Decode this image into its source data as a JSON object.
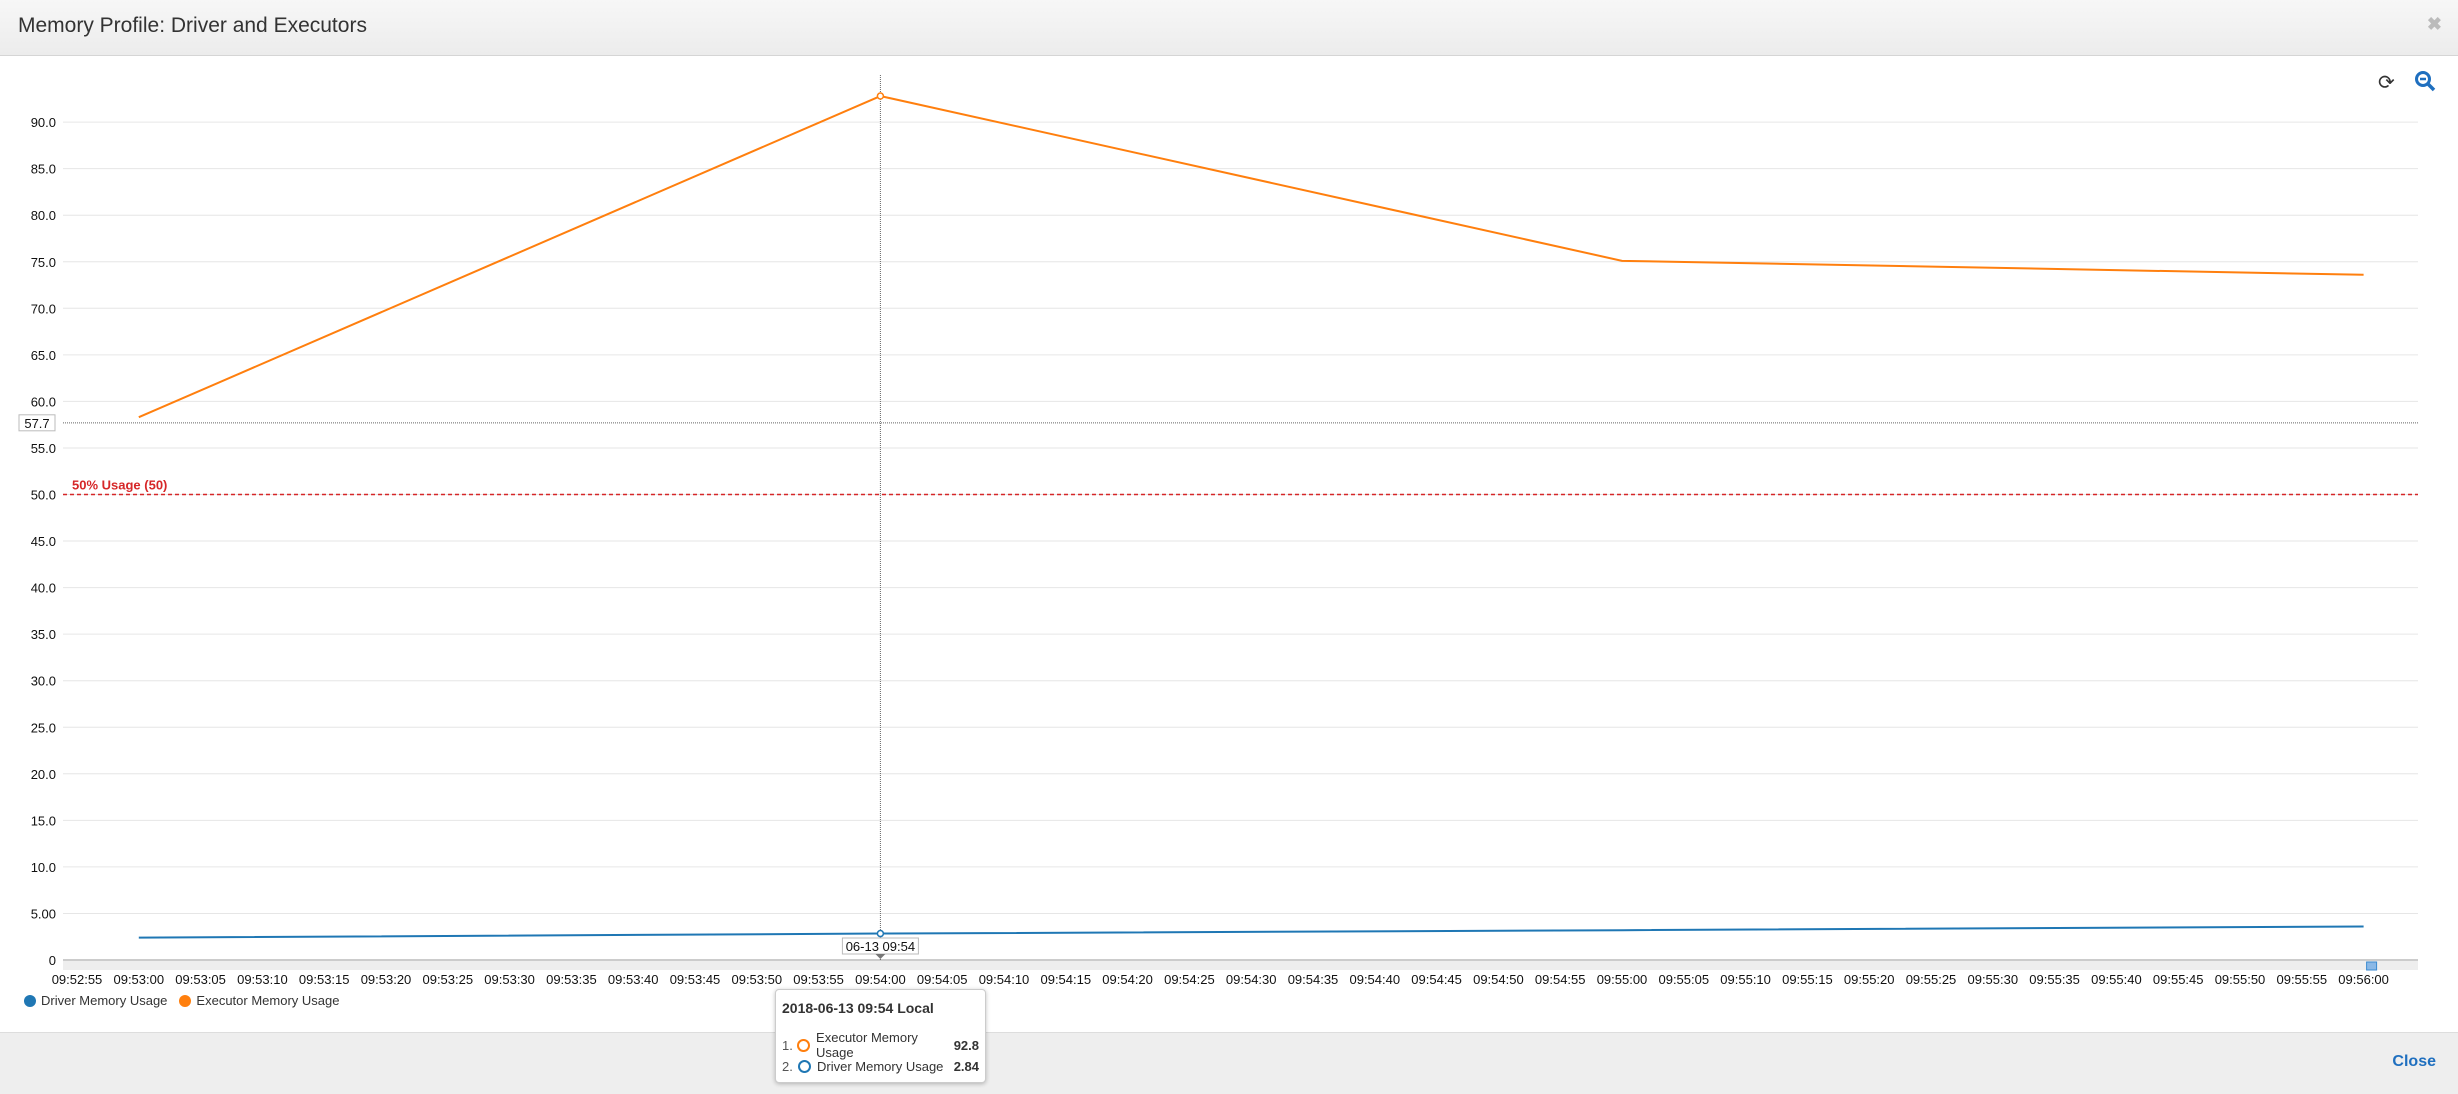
{
  "header": {
    "title": "Memory Profile: Driver and Executors",
    "close_icon": "times-icon"
  },
  "toolbar": {
    "refresh_icon": "refresh-icon",
    "zoom_out_icon": "zoom-out-icon"
  },
  "footer": {
    "close_label": "Close"
  },
  "chart_data": {
    "type": "line",
    "title": "",
    "xlabel": "",
    "ylabel": "",
    "ylim": [
      0,
      95
    ],
    "grid": true,
    "y_ticks": [
      "0",
      "5.00",
      "10.0",
      "15.0",
      "20.0",
      "25.0",
      "30.0",
      "35.0",
      "40.0",
      "45.0",
      "50.0",
      "55.0",
      "60.0",
      "65.0",
      "70.0",
      "75.0",
      "80.0",
      "85.0",
      "90.0"
    ],
    "x_ticks": [
      "09:52:55",
      "09:53:00",
      "09:53:05",
      "09:53:10",
      "09:53:15",
      "09:53:20",
      "09:53:25",
      "09:53:30",
      "09:53:35",
      "09:53:40",
      "09:53:45",
      "09:53:50",
      "09:53:55",
      "09:54:00",
      "09:54:05",
      "09:54:10",
      "09:54:15",
      "09:54:20",
      "09:54:25",
      "09:54:30",
      "09:54:35",
      "09:54:40",
      "09:54:45",
      "09:54:50",
      "09:54:55",
      "09:55:00",
      "09:55:05",
      "09:55:10",
      "09:55:15",
      "09:55:20",
      "09:55:25",
      "09:55:30",
      "09:55:35",
      "09:55:40",
      "09:55:45",
      "09:55:50",
      "09:55:55",
      "09:56:00"
    ],
    "x": [
      "09:53:00",
      "09:54:00",
      "09:55:00",
      "09:56:00"
    ],
    "series": [
      {
        "name": "Driver Memory Usage",
        "color": "#1f77b4",
        "values": [
          2.4,
          2.84,
          3.2,
          3.6
        ]
      },
      {
        "name": "Executor Memory Usage",
        "color": "#ff7f0e",
        "values": [
          58.3,
          92.8,
          75.1,
          73.6
        ]
      }
    ],
    "threshold": {
      "label": "50% Usage (50)",
      "value": 50,
      "color": "#d62728"
    },
    "crosshair": {
      "y_label": "57.7",
      "x_label": "06-13 09:54"
    },
    "legend_position": "bottom-left",
    "tooltip": {
      "title": "2018-06-13 09:54 Local",
      "rows": [
        {
          "index": "1.",
          "name": "Executor Memory Usage",
          "value": "92.8",
          "color": "#ff7f0e"
        },
        {
          "index": "2.",
          "name": "Driver Memory Usage",
          "value": "2.84",
          "color": "#1f77b4"
        }
      ]
    }
  }
}
